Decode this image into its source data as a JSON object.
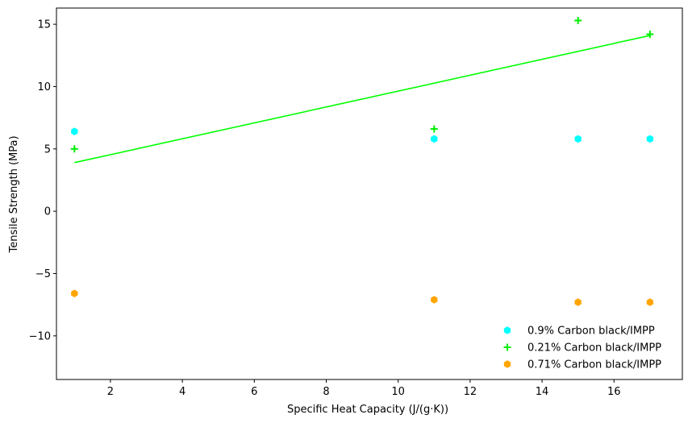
{
  "chart_data": {
    "type": "scatter",
    "xlabel": "Specific Heat Capacity (J/(g·K))",
    "ylabel": "Tensile Strength (MPa)",
    "xlim": [
      0.5,
      17.9
    ],
    "ylim": [
      -13.5,
      16.3
    ],
    "xticks": [
      2,
      4,
      6,
      8,
      10,
      12,
      14,
      16
    ],
    "yticks": [
      -10,
      -5,
      0,
      5,
      10,
      15
    ],
    "xtick_labels": [
      "2",
      "4",
      "6",
      "8",
      "10",
      "12",
      "14",
      "16"
    ],
    "ytick_labels": [
      "−10",
      "−5",
      "0",
      "5",
      "10",
      "15"
    ],
    "legend_position": "lower-right",
    "grid": false,
    "series": [
      {
        "name": "0.9% Carbon black/IMPP",
        "marker": "hexagon",
        "color": "#00ffff",
        "x": [
          1,
          11,
          15,
          17
        ],
        "y": [
          6.4,
          5.8,
          5.8,
          5.8
        ]
      },
      {
        "name": "0.21% Carbon black/IMPP",
        "marker": "plus",
        "color": "#00ee00",
        "x": [
          1,
          11,
          15,
          17
        ],
        "y": [
          5.0,
          6.6,
          15.3,
          14.2
        ]
      },
      {
        "name": "0.71% Carbon black/IMPP",
        "marker": "hexagon",
        "color": "#ffa500",
        "x": [
          1,
          11,
          15,
          17
        ],
        "y": [
          -6.6,
          -7.1,
          -7.3,
          -7.3
        ]
      }
    ],
    "trendline": {
      "color": "#00ff00",
      "x": [
        1,
        17
      ],
      "y": [
        3.9,
        14.1
      ]
    }
  }
}
